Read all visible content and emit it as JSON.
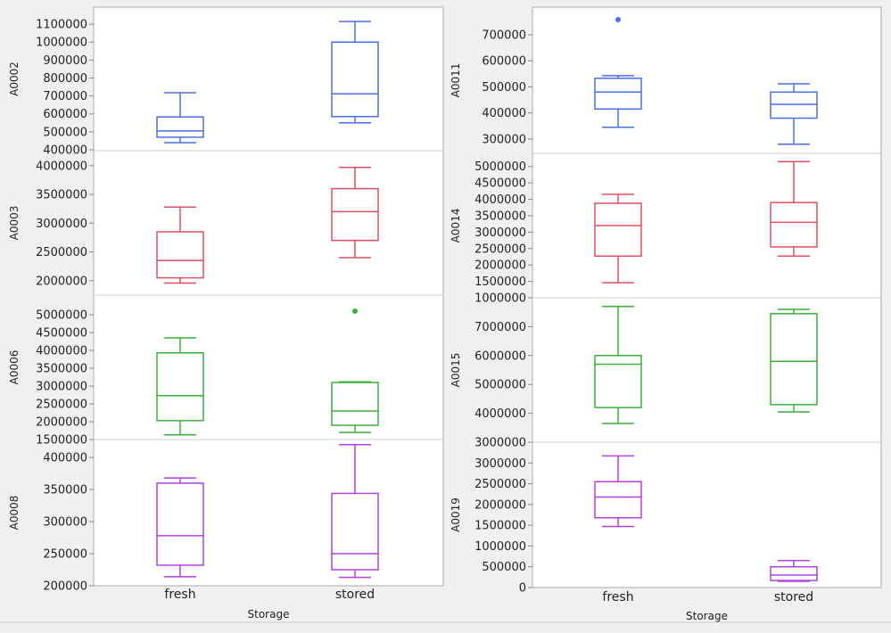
{
  "chart_data": [
    {
      "type": "box",
      "xlabel": "Storage",
      "categories": [
        "fresh",
        "stored"
      ],
      "panels": [
        {
          "ylabel": "A0002",
          "color": "#4a6fe3",
          "ylim": [
            395000,
            1195000
          ],
          "ticks": [
            400000,
            500000,
            600000,
            700000,
            800000,
            900000,
            1000000,
            1100000
          ],
          "boxes": [
            {
              "min": 440000,
              "q1": 470000,
              "median": 505000,
              "q3": 583000,
              "max": 718000,
              "outliers": []
            },
            {
              "min": 550000,
              "q1": 585000,
              "median": 712000,
              "q3": 1000000,
              "max": 1115000,
              "outliers": []
            }
          ]
        },
        {
          "ylabel": "A0003",
          "color": "#e05060",
          "ylim": [
            1750000,
            4260000
          ],
          "ticks": [
            2000000,
            2500000,
            3000000,
            3500000,
            4000000
          ],
          "boxes": [
            {
              "min": 1960000,
              "q1": 2050000,
              "median": 2350000,
              "q3": 2850000,
              "max": 3280000,
              "outliers": []
            },
            {
              "min": 2400000,
              "q1": 2700000,
              "median": 3200000,
              "q3": 3600000,
              "max": 3970000,
              "outliers": []
            }
          ]
        },
        {
          "ylabel": "A0006",
          "color": "#3ab03a",
          "ylim": [
            1500000,
            5550000
          ],
          "ticks": [
            1500000,
            2000000,
            2500000,
            3000000,
            3500000,
            4000000,
            4500000,
            5000000
          ],
          "boxes": [
            {
              "min": 1630000,
              "q1": 2030000,
              "median": 2730000,
              "q3": 3930000,
              "max": 4350000,
              "outliers": []
            },
            {
              "min": 1700000,
              "q1": 1900000,
              "median": 2300000,
              "q3": 3100000,
              "max": 3120000,
              "outliers": [
                5100000
              ]
            }
          ]
        },
        {
          "ylabel": "A0008",
          "color": "#b040e0",
          "ylim": [
            200000,
            428000
          ],
          "ticks": [
            200000,
            250000,
            300000,
            350000,
            400000
          ],
          "boxes": [
            {
              "min": 214000,
              "q1": 232000,
              "median": 278000,
              "q3": 360000,
              "max": 368000,
              "outliers": []
            },
            {
              "min": 213000,
              "q1": 225000,
              "median": 250000,
              "q3": 344000,
              "max": 420000,
              "outliers": []
            }
          ]
        }
      ]
    },
    {
      "type": "box",
      "xlabel": "Storage",
      "categories": [
        "fresh",
        "stored"
      ],
      "panels": [
        {
          "ylabel": "A0011",
          "color": "#4a6fe3",
          "ylim": [
            245000,
            806000
          ],
          "ticks": [
            300000,
            400000,
            500000,
            600000,
            700000
          ],
          "boxes": [
            {
              "min": 345000,
              "q1": 415000,
              "median": 480000,
              "q3": 533000,
              "max": 543000,
              "outliers": [
                758000
              ]
            },
            {
              "min": 280000,
              "q1": 380000,
              "median": 433000,
              "q3": 480000,
              "max": 512000,
              "outliers": []
            }
          ]
        },
        {
          "ylabel": "A0014",
          "color": "#e05060",
          "ylim": [
            1000000,
            5400000
          ],
          "ticks": [
            1000000,
            1500000,
            2000000,
            2500000,
            3000000,
            3500000,
            4000000,
            4500000,
            5000000
          ],
          "boxes": [
            {
              "min": 1460000,
              "q1": 2270000,
              "median": 3200000,
              "q3": 3880000,
              "max": 4150000,
              "outliers": []
            },
            {
              "min": 2270000,
              "q1": 2550000,
              "median": 3300000,
              "q3": 3900000,
              "max": 5150000,
              "outliers": []
            }
          ]
        },
        {
          "ylabel": "A0015",
          "color": "#3ab03a",
          "ylim": [
            3000000,
            8000000
          ],
          "ticks": [
            3000000,
            4000000,
            5000000,
            6000000,
            7000000
          ],
          "boxes": [
            {
              "min": 3650000,
              "q1": 4200000,
              "median": 5700000,
              "q3": 6000000,
              "max": 7700000,
              "outliers": []
            },
            {
              "min": 4050000,
              "q1": 4300000,
              "median": 5800000,
              "q3": 7450000,
              "max": 7600000,
              "outliers": []
            }
          ]
        },
        {
          "ylabel": "A0019",
          "color": "#b040e0",
          "ylim": [
            0,
            3500000
          ],
          "ticks": [
            0,
            500000,
            1000000,
            1500000,
            2000000,
            2500000,
            3000000
          ],
          "boxes": [
            {
              "min": 1470000,
              "q1": 1680000,
              "median": 2180000,
              "q3": 2550000,
              "max": 3170000,
              "outliers": []
            },
            {
              "min": 150000,
              "q1": 170000,
              "median": 300000,
              "q3": 500000,
              "max": 650000,
              "outliers": []
            }
          ]
        }
      ]
    }
  ]
}
